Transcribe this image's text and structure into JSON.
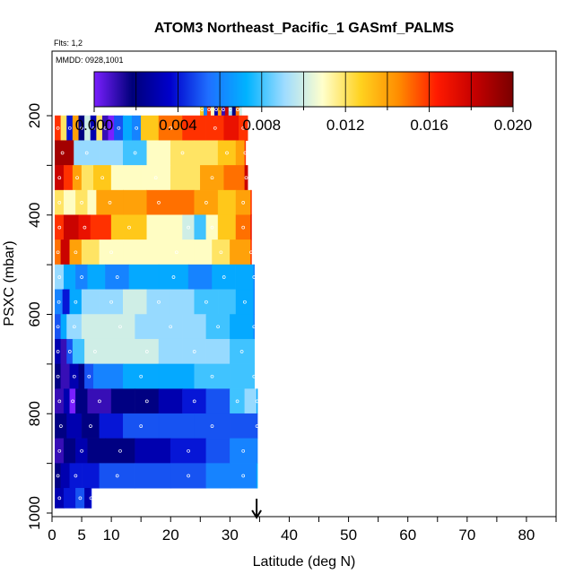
{
  "chart_data": {
    "type": "heatmap",
    "title": "ATOM3 Northeast_Pacific_1 GASmf_PALMS",
    "subtitle_flights": "Flts: 1,2",
    "subtitle_dates": "MMDD: 0928,1001",
    "xlabel": "Latitude (deg N)",
    "ylabel": "PSXC (mbar)",
    "xlim": [
      0,
      85
    ],
    "ylim": [
      1000,
      70
    ],
    "x_ticks": [
      0,
      5,
      10,
      20,
      30,
      40,
      50,
      60,
      70,
      80
    ],
    "x_minor_ticks": [
      15,
      25,
      35,
      45,
      55,
      65,
      75,
      85
    ],
    "y_ticks": [
      200,
      400,
      600,
      800,
      1000
    ],
    "y_minor_ticks": [
      300,
      500,
      700,
      900
    ],
    "colorbar": {
      "range": [
        0.0,
        0.02
      ],
      "tick_labels": [
        "0.000",
        "0.004",
        "0.008",
        "0.012",
        "0.016",
        "0.020"
      ],
      "tick_values": [
        0.0,
        0.004,
        0.008,
        0.012,
        0.016,
        0.02
      ],
      "colors": [
        "#7a1fff",
        "#00007a",
        "#0000cc",
        "#1f6fff",
        "#00b3ff",
        "#9fdcff",
        "#ffffcc",
        "#ffd21f",
        "#ff8c00",
        "#ff1a00",
        "#c40000",
        "#7a0000"
      ]
    },
    "arrow_marker_latitude": 34.5,
    "layers": [
      {
        "p": [
          175,
          200
        ],
        "x_end": 32.0,
        "segments": [
          [
            25.0,
            0.013
          ],
          [
            25.6,
            0.006
          ],
          [
            26.2,
            0.016
          ],
          [
            26.8,
            0.011
          ],
          [
            27.4,
            0.003
          ],
          [
            28.0,
            0.014
          ],
          [
            28.6,
            0.001
          ],
          [
            29.2,
            0.018
          ],
          [
            29.8,
            0.009
          ],
          [
            30.4,
            0.002
          ],
          [
            31.0,
            0.015
          ],
          [
            31.6,
            0.01
          ]
        ]
      },
      {
        "p": [
          200,
          250
        ],
        "x_end": 33.0,
        "segments": [
          [
            0.5,
            0.016
          ],
          [
            1.5,
            0.012
          ],
          [
            2.5,
            0.004
          ],
          [
            3.5,
            0.014
          ],
          [
            4.5,
            0.002
          ],
          [
            5.5,
            0.01
          ],
          [
            6.5,
            0.003
          ],
          [
            7.5,
            0.012
          ],
          [
            8.5,
            0.001
          ],
          [
            9.5,
            0.0
          ],
          [
            10.5,
            0.005
          ],
          [
            12.0,
            0.007
          ],
          [
            13.5,
            0.006
          ],
          [
            15.0,
            0.013
          ],
          [
            18.0,
            0.015
          ],
          [
            22.0,
            0.016
          ],
          [
            26.0,
            0.016
          ],
          [
            29.0,
            0.017
          ],
          [
            31.5,
            0.016
          ]
        ]
      },
      {
        "p": [
          250,
          300
        ],
        "x_end": 32.5,
        "segments": [
          [
            0.5,
            0.019
          ],
          [
            3.0,
            0.019
          ],
          [
            3.7,
            0.009
          ],
          [
            8.0,
            0.009
          ],
          [
            12.0,
            0.008
          ],
          [
            16.0,
            0.011
          ],
          [
            20.0,
            0.012
          ],
          [
            24.0,
            0.012
          ],
          [
            28.0,
            0.013
          ],
          [
            31.0,
            0.014
          ],
          [
            32.5,
            0.016
          ]
        ]
      },
      {
        "p": [
          300,
          350
        ],
        "x_end": 33.0,
        "segments": [
          [
            0.5,
            0.018
          ],
          [
            2.0,
            0.016
          ],
          [
            3.5,
            0.014
          ],
          [
            5.0,
            0.012
          ],
          [
            7.0,
            0.013
          ],
          [
            10.0,
            0.011
          ],
          [
            15.0,
            0.011
          ],
          [
            20.0,
            0.012
          ],
          [
            25.0,
            0.014
          ],
          [
            29.0,
            0.015
          ],
          [
            32.5,
            0.018
          ]
        ]
      },
      {
        "p": [
          350,
          400
        ],
        "x_end": 33.5,
        "segments": [
          [
            0.5,
            0.012
          ],
          [
            2.0,
            0.011
          ],
          [
            4.0,
            0.012
          ],
          [
            6.0,
            0.011
          ],
          [
            7.5,
            0.014
          ],
          [
            12.0,
            0.014
          ],
          [
            16.0,
            0.015
          ],
          [
            20.0,
            0.015
          ],
          [
            24.0,
            0.014
          ],
          [
            28.0,
            0.013
          ],
          [
            31.0,
            0.014
          ],
          [
            33.5,
            0.016
          ]
        ]
      },
      {
        "p": [
          400,
          450
        ],
        "x_end": 33.5,
        "segments": [
          [
            0.5,
            0.016
          ],
          [
            2.0,
            0.018
          ],
          [
            4.5,
            0.017
          ],
          [
            6.5,
            0.016
          ],
          [
            10.0,
            0.013
          ],
          [
            16.0,
            0.011
          ],
          [
            22.0,
            0.01
          ],
          [
            24.0,
            0.008
          ],
          [
            26.0,
            0.011
          ],
          [
            28.0,
            0.013
          ],
          [
            31.0,
            0.015
          ],
          [
            33.5,
            0.017
          ]
        ]
      },
      {
        "p": [
          450,
          500
        ],
        "x_end": 33.5,
        "segments": [
          [
            0.5,
            0.015
          ],
          [
            1.5,
            0.018
          ],
          [
            3.0,
            0.014
          ],
          [
            5.0,
            0.012
          ],
          [
            8.0,
            0.011
          ],
          [
            12.0,
            0.011
          ],
          [
            18.0,
            0.011
          ],
          [
            24.0,
            0.011
          ],
          [
            27.0,
            0.012
          ],
          [
            30.0,
            0.014
          ],
          [
            33.5,
            0.016
          ]
        ]
      },
      {
        "p": [
          500,
          550
        ],
        "x_end": 34.0,
        "segments": [
          [
            0.5,
            0.009
          ],
          [
            2.0,
            0.007
          ],
          [
            4.0,
            0.006
          ],
          [
            6.0,
            0.007
          ],
          [
            9.0,
            0.006
          ],
          [
            13.0,
            0.007
          ],
          [
            18.0,
            0.007
          ],
          [
            23.0,
            0.006
          ],
          [
            27.0,
            0.007
          ],
          [
            31.0,
            0.007
          ],
          [
            34.0,
            0.006
          ]
        ]
      },
      {
        "p": [
          550,
          600
        ],
        "x_end": 34.0,
        "segments": [
          [
            0.5,
            0.006
          ],
          [
            1.8,
            0.004
          ],
          [
            3.0,
            0.007
          ],
          [
            5.0,
            0.009
          ],
          [
            8.0,
            0.009
          ],
          [
            12.0,
            0.01
          ],
          [
            16.0,
            0.009
          ],
          [
            20.0,
            0.009
          ],
          [
            24.0,
            0.008
          ],
          [
            28.0,
            0.008
          ],
          [
            31.0,
            0.007
          ],
          [
            34.0,
            0.006
          ]
        ]
      },
      {
        "p": [
          600,
          650
        ],
        "x_end": 34.0,
        "segments": [
          [
            0.5,
            0.005
          ],
          [
            1.5,
            0.007
          ],
          [
            2.5,
            0.009
          ],
          [
            5.0,
            0.01
          ],
          [
            9.0,
            0.01
          ],
          [
            14.0,
            0.009
          ],
          [
            18.0,
            0.009
          ],
          [
            22.0,
            0.009
          ],
          [
            26.0,
            0.008
          ],
          [
            30.0,
            0.007
          ],
          [
            34.0,
            0.006
          ]
        ]
      },
      {
        "p": [
          650,
          700
        ],
        "x_end": 34.0,
        "segments": [
          [
            0.5,
            0.003
          ],
          [
            1.5,
            0.001
          ],
          [
            2.5,
            0.005
          ],
          [
            3.5,
            0.008
          ],
          [
            5.5,
            0.01
          ],
          [
            9.0,
            0.01
          ],
          [
            14.0,
            0.01
          ],
          [
            18.0,
            0.009
          ],
          [
            22.0,
            0.009
          ],
          [
            26.0,
            0.009
          ],
          [
            30.0,
            0.008
          ],
          [
            34.0,
            0.008
          ]
        ]
      },
      {
        "p": [
          700,
          750
        ],
        "x_end": 34.0,
        "segments": [
          [
            0.5,
            0.002
          ],
          [
            1.5,
            0.001
          ],
          [
            3.0,
            0.003
          ],
          [
            4.5,
            0.002
          ],
          [
            5.5,
            0.005
          ],
          [
            7.0,
            0.006
          ],
          [
            12.0,
            0.007
          ],
          [
            18.0,
            0.007
          ],
          [
            24.0,
            0.008
          ],
          [
            30.0,
            0.008
          ],
          [
            34.0,
            0.008
          ]
        ]
      },
      {
        "p": [
          750,
          800
        ],
        "x_end": 34.5,
        "segments": [
          [
            0.5,
            0.001
          ],
          [
            2.0,
            0.003
          ],
          [
            3.0,
            0.0
          ],
          [
            4.0,
            0.002
          ],
          [
            6.0,
            0.001
          ],
          [
            10.0,
            0.002
          ],
          [
            14.0,
            0.002
          ],
          [
            18.0,
            0.003
          ],
          [
            22.0,
            0.004
          ],
          [
            26.0,
            0.005
          ],
          [
            30.0,
            0.008
          ],
          [
            32.5,
            0.009
          ],
          [
            34.5,
            0.007
          ]
        ]
      },
      {
        "p": [
          800,
          850
        ],
        "x_end": 34.5,
        "segments": [
          [
            0.5,
            0.002
          ],
          [
            2.5,
            0.003
          ],
          [
            5.0,
            0.002
          ],
          [
            8.0,
            0.004
          ],
          [
            12.0,
            0.005
          ],
          [
            18.0,
            0.005
          ],
          [
            24.0,
            0.005
          ],
          [
            30.0,
            0.005
          ],
          [
            34.5,
            0.005
          ]
        ]
      },
      {
        "p": [
          850,
          900
        ],
        "x_end": 34.5,
        "segments": [
          [
            0.5,
            0.001
          ],
          [
            2.0,
            0.002
          ],
          [
            4.0,
            0.003
          ],
          [
            6.0,
            0.002
          ],
          [
            9.0,
            0.002
          ],
          [
            14.0,
            0.003
          ],
          [
            20.0,
            0.004
          ],
          [
            26.0,
            0.005
          ],
          [
            30.0,
            0.006
          ],
          [
            34.5,
            0.006
          ]
        ]
      },
      {
        "p": [
          900,
          950
        ],
        "x_end": 34.5,
        "segments": [
          [
            0.5,
            0.002
          ],
          [
            1.5,
            0.003
          ],
          [
            3.0,
            0.004
          ],
          [
            5.0,
            0.004
          ],
          [
            8.0,
            0.005
          ],
          [
            14.0,
            0.005
          ],
          [
            20.0,
            0.005
          ],
          [
            26.0,
            0.006
          ],
          [
            30.0,
            0.006
          ],
          [
            34.5,
            0.007
          ]
        ]
      },
      {
        "p": [
          950,
          990
        ],
        "x_end": 6.5,
        "segments": [
          [
            0.5,
            0.003
          ],
          [
            2.0,
            0.004
          ],
          [
            4.0,
            0.005
          ],
          [
            5.5,
            0.003
          ],
          [
            6.5,
            0.004
          ]
        ]
      }
    ]
  }
}
